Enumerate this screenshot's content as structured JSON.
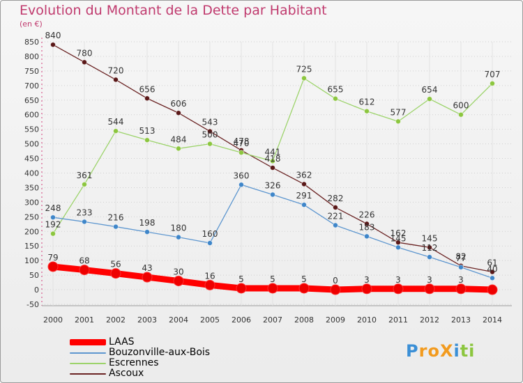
{
  "title": "Evolution du Montant de la Dette par Habitant",
  "unit": "(en €)",
  "logo": {
    "text": "ProXiti",
    "letters": [
      "P",
      "r",
      "o",
      "X",
      "i",
      "t",
      "i"
    ],
    "colors": [
      "#3a8fd6",
      "#f29b1f",
      "#f29b1f",
      "#f29b1f",
      "#3a8fd6",
      "#8cc63f",
      "#8cc63f"
    ]
  },
  "chart_data": {
    "type": "line",
    "title": "Evolution du Montant de la Dette par Habitant",
    "ylabel": "(en €)",
    "xlabel": "",
    "x": [
      "2000",
      "2001",
      "2002",
      "2003",
      "2004",
      "2005",
      "2006",
      "2007",
      "2008",
      "2009",
      "2010",
      "2011",
      "2012",
      "2013",
      "2014"
    ],
    "ylim": [
      -50,
      850
    ],
    "yticks": [
      "-50",
      "0",
      "50",
      "100",
      "150",
      "200",
      "250",
      "300",
      "350",
      "400",
      "450",
      "500",
      "550",
      "600",
      "650",
      "700",
      "750",
      "800",
      "850"
    ],
    "grid": true,
    "legend_position": "bottom-left",
    "series": [
      {
        "name": "LAAS",
        "color": "#ff0000",
        "marker_color": "#ee0000",
        "values": [
          79,
          68,
          56,
          43,
          30,
          16,
          5,
          5,
          5,
          0,
          3,
          3,
          3,
          3,
          0
        ],
        "labels": [
          "79",
          "68",
          "56",
          "43",
          "30",
          "16",
          "5",
          "5",
          "5",
          "0",
          "3",
          "3",
          "3",
          "3",
          ""
        ]
      },
      {
        "name": "Bouzonville-aux-Bois",
        "color": "#5d96cf",
        "marker_color": "#3f86c9",
        "values": [
          248,
          233,
          216,
          198,
          180,
          160,
          360,
          326,
          291,
          221,
          183,
          145,
          112,
          77,
          40
        ],
        "labels": [
          "248",
          "233",
          "216",
          "198",
          "180",
          "160",
          "360",
          "326",
          "291",
          "221",
          "183",
          "145",
          "112",
          "77",
          "40"
        ]
      },
      {
        "name": "Escrennes",
        "color": "#9cd36a",
        "marker_color": "#8cc63f",
        "values": [
          192,
          361,
          544,
          513,
          484,
          500,
          470,
          441,
          725,
          655,
          612,
          577,
          654,
          600,
          707
        ],
        "labels": [
          "192",
          "361",
          "544",
          "513",
          "484",
          "500",
          "470",
          "441",
          "725",
          "655",
          "612",
          "577",
          "654",
          "600",
          "707"
        ]
      },
      {
        "name": "Ascoux",
        "color": "#6b2424",
        "marker_color": "#5a1818",
        "values": [
          840,
          780,
          720,
          656,
          606,
          543,
          478,
          418,
          362,
          282,
          226,
          162,
          145,
          82,
          61
        ],
        "labels": [
          "840",
          "780",
          "720",
          "656",
          "606",
          "543",
          "478",
          "418",
          "362",
          "282",
          "226",
          "162",
          "145",
          "82",
          "61"
        ]
      }
    ]
  }
}
